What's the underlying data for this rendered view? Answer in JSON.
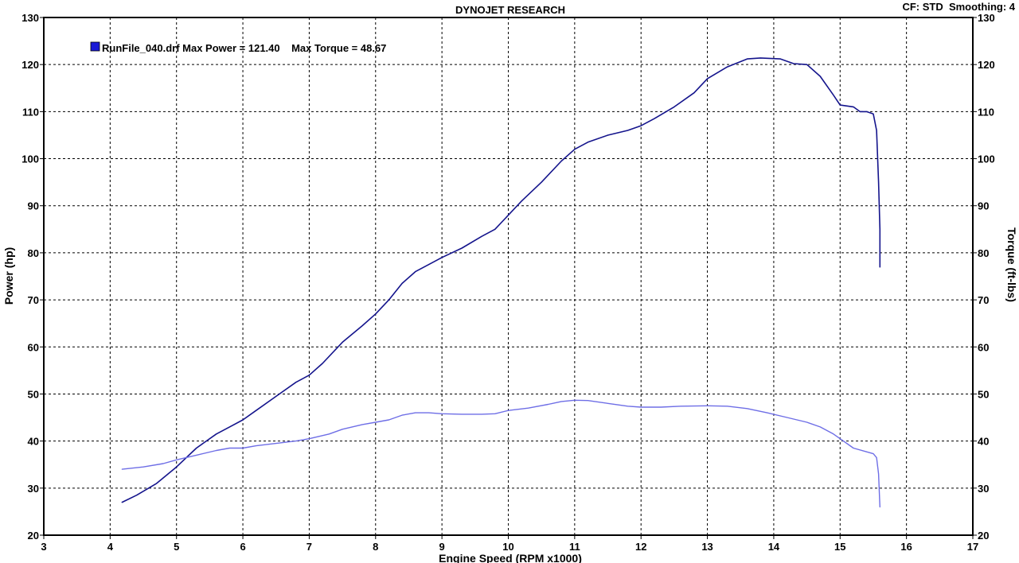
{
  "header": {
    "title": "DYNOJET RESEARCH",
    "info": "CF: STD  Smoothing: 4"
  },
  "legend": {
    "entry": "RunFile_040.drf Max Power = 121.40    Max Torque = 48.67",
    "color": "#1a1ad6"
  },
  "chart_data": {
    "type": "line",
    "title": "DYNOJET RESEARCH",
    "xlabel": "Engine Speed (RPM x1000)",
    "ylabel": "Power (hp)",
    "y2label": "Torque (ft-lbs)",
    "xlim": [
      3,
      17
    ],
    "ylim": [
      20,
      130
    ],
    "y2lim": [
      20,
      130
    ],
    "x_ticks": [
      3,
      4,
      5,
      6,
      7,
      8,
      9,
      10,
      11,
      12,
      13,
      14,
      15,
      16,
      17
    ],
    "y_ticks": [
      20,
      30,
      40,
      50,
      60,
      70,
      80,
      90,
      100,
      110,
      120,
      130
    ],
    "grid": true,
    "legend_position": "top-left",
    "series": [
      {
        "name": "RunFile_040.drf Max Power",
        "axis": "left",
        "color": "#14148c",
        "x": [
          4.18,
          4.4,
          4.7,
          5.0,
          5.3,
          5.6,
          5.8,
          6.0,
          6.2,
          6.5,
          6.8,
          7.0,
          7.2,
          7.5,
          7.8,
          8.0,
          8.2,
          8.4,
          8.6,
          8.8,
          9.0,
          9.3,
          9.6,
          9.8,
          10.0,
          10.2,
          10.5,
          10.8,
          11.0,
          11.2,
          11.5,
          11.8,
          12.0,
          12.2,
          12.5,
          12.8,
          13.0,
          13.3,
          13.6,
          13.8,
          14.1,
          14.3,
          14.5,
          14.7,
          14.9,
          15.0,
          15.2,
          15.3,
          15.4,
          15.5,
          15.55,
          15.58,
          15.6,
          15.6
        ],
        "values": [
          27.0,
          28.5,
          31.0,
          34.5,
          38.5,
          41.5,
          43.0,
          44.5,
          46.5,
          49.5,
          52.5,
          54.0,
          56.5,
          61.0,
          64.5,
          67.0,
          70.0,
          73.5,
          76.0,
          77.5,
          79.0,
          81.0,
          83.5,
          85.0,
          88.0,
          91.0,
          95.0,
          99.5,
          102.0,
          103.5,
          105.0,
          106.0,
          107.0,
          108.5,
          111.0,
          114.0,
          117.0,
          119.5,
          121.2,
          121.4,
          121.2,
          120.2,
          120.0,
          117.5,
          113.5,
          111.4,
          111.0,
          110.0,
          110.0,
          109.5,
          106.0,
          95.0,
          85.0,
          77.0
        ]
      },
      {
        "name": "Max Torque",
        "axis": "right",
        "color": "#6e6ee6",
        "x": [
          4.18,
          4.5,
          4.8,
          5.0,
          5.3,
          5.6,
          5.8,
          6.0,
          6.2,
          6.5,
          6.8,
          7.0,
          7.3,
          7.5,
          7.8,
          8.0,
          8.2,
          8.4,
          8.6,
          8.8,
          9.0,
          9.3,
          9.6,
          9.8,
          10.0,
          10.3,
          10.6,
          10.8,
          11.0,
          11.2,
          11.5,
          11.8,
          12.0,
          12.3,
          12.6,
          13.0,
          13.3,
          13.6,
          13.9,
          14.2,
          14.5,
          14.7,
          14.9,
          15.0,
          15.2,
          15.4,
          15.5,
          15.55,
          15.58,
          15.6
        ],
        "values": [
          34.0,
          34.5,
          35.2,
          36.0,
          37.0,
          38.0,
          38.5,
          38.5,
          39.0,
          39.5,
          40.0,
          40.5,
          41.5,
          42.5,
          43.5,
          44.0,
          44.5,
          45.5,
          46.0,
          46.0,
          45.8,
          45.7,
          45.7,
          45.8,
          46.5,
          47.0,
          47.8,
          48.4,
          48.67,
          48.6,
          48.0,
          47.4,
          47.2,
          47.2,
          47.4,
          47.5,
          47.4,
          46.9,
          46.0,
          45.0,
          44.0,
          43.0,
          41.5,
          40.5,
          38.5,
          37.7,
          37.3,
          36.5,
          33.0,
          26.0
        ]
      }
    ]
  }
}
